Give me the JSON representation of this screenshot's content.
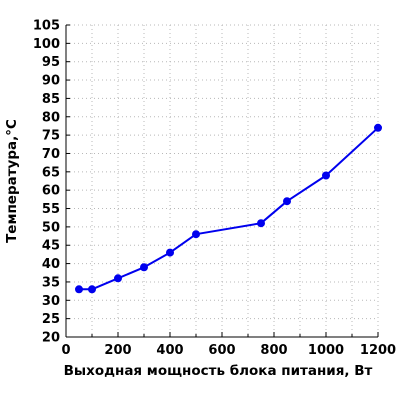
{
  "chart_data": {
    "type": "line",
    "title": "",
    "xlabel": "Выходная мощность блока питания, Вт",
    "ylabel": "Температура,°C",
    "xlim": [
      0,
      1200
    ],
    "ylim": [
      20,
      105
    ],
    "x_ticks": [
      0,
      200,
      400,
      600,
      800,
      1000,
      1200
    ],
    "y_ticks": [
      20,
      25,
      30,
      35,
      40,
      45,
      50,
      55,
      60,
      65,
      70,
      75,
      80,
      85,
      90,
      95,
      100,
      105
    ],
    "grid": true,
    "legend": "none",
    "series": [
      {
        "color": "#0000ee",
        "x": [
          50,
          100,
          200,
          300,
          400,
          500,
          750,
          850,
          1000,
          1200
        ],
        "y": [
          33,
          33,
          36,
          39,
          43,
          48,
          51,
          57,
          64,
          77
        ]
      }
    ]
  }
}
